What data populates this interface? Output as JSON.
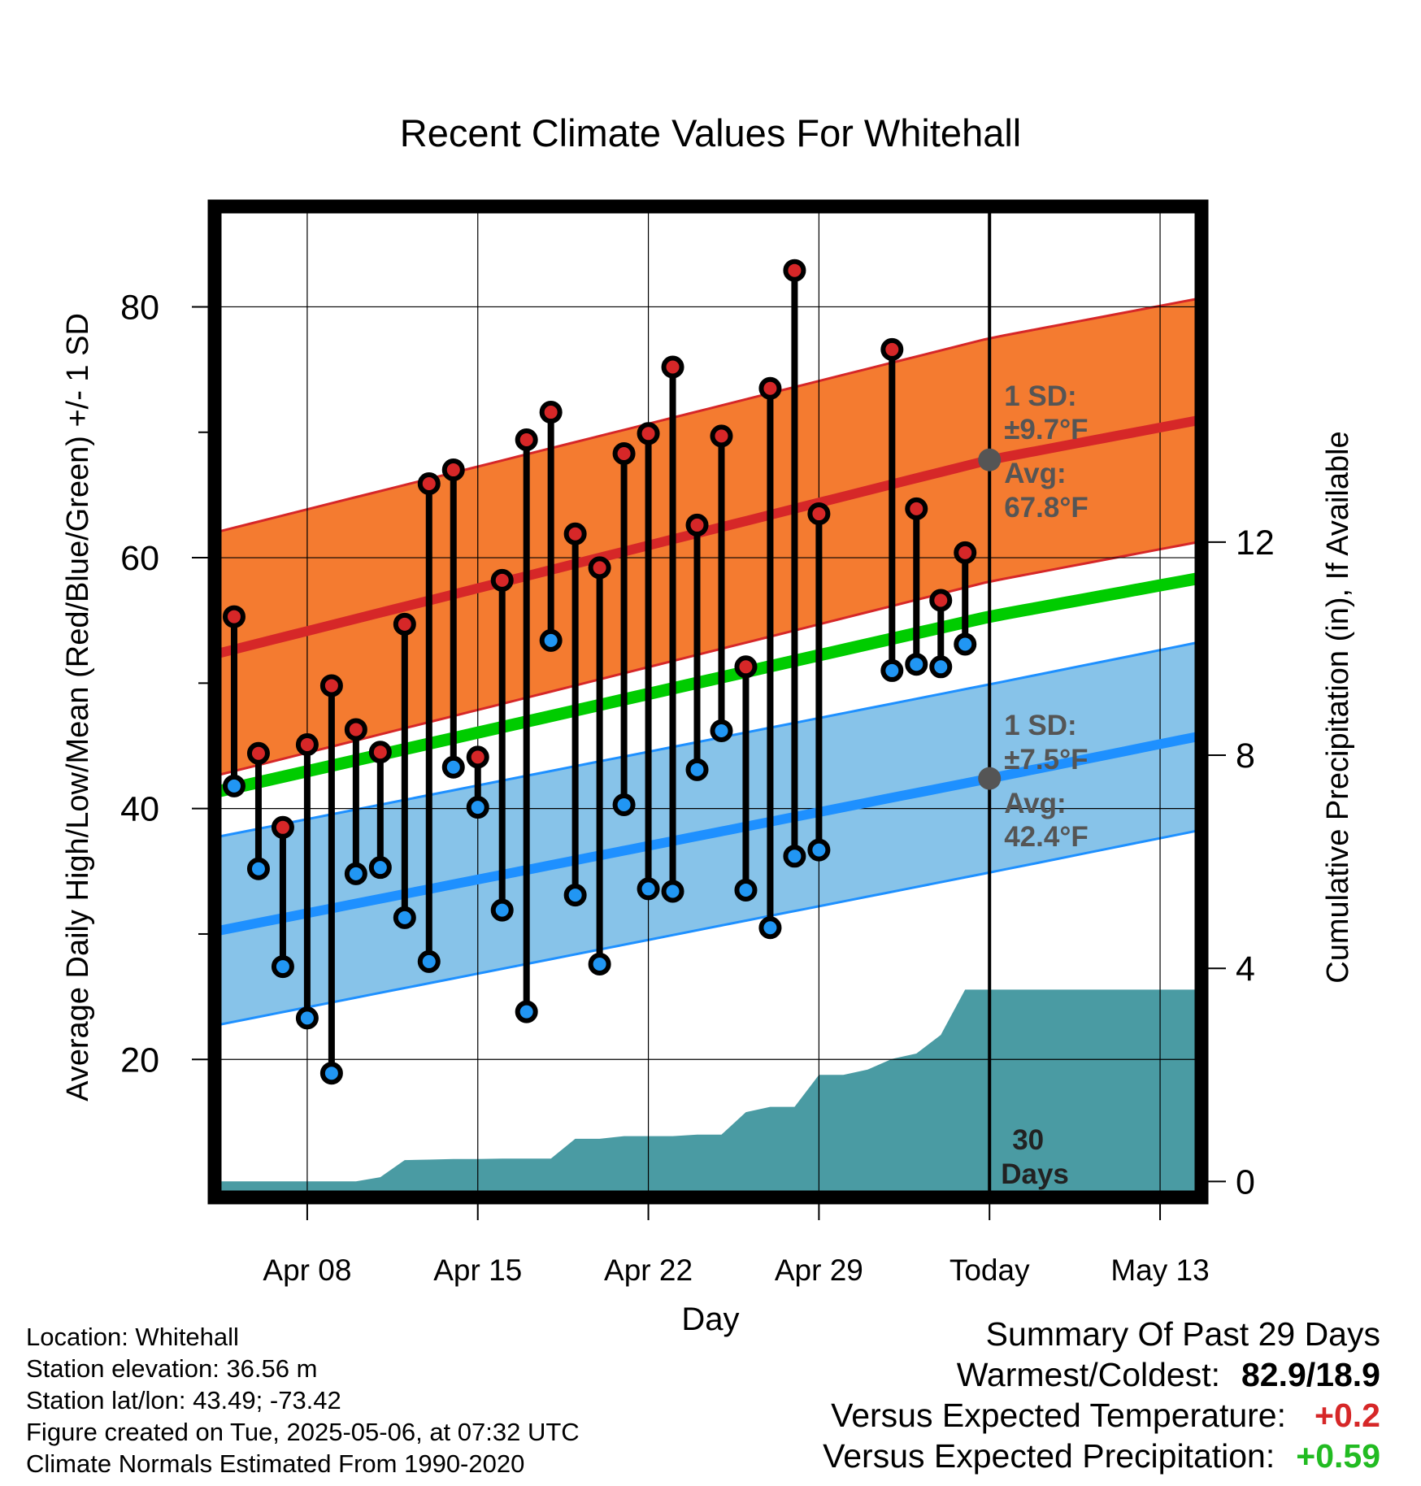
{
  "chart_data": {
    "type": "line",
    "title": "Recent Climate Values For Whitehall",
    "xlabel": "Day",
    "ylabel_left": "Average Daily High/Low/Mean (Red/Blue/Green) +/- 1 SD",
    "ylabel_right": "Cumulative Precipitation (in), If Available",
    "x_tick_labels": [
      "Apr 08",
      "Apr 15",
      "Apr 22",
      "Apr 29",
      "Today",
      "May 13"
    ],
    "x_tick_days": [
      8,
      15,
      22,
      29,
      36,
      43
    ],
    "xlim": [
      4.2,
      44.7
    ],
    "today_day": 36,
    "ylim_left": [
      9,
      88
    ],
    "y_ticks_left": [
      20,
      40,
      60,
      80
    ],
    "y_minor_ticks_left": [
      30,
      50,
      70
    ],
    "ylim_right": [
      -0.3,
      18.3
    ],
    "y_ticks_right": [
      0,
      4,
      8,
      12
    ],
    "grid": true,
    "observed": {
      "days": [
        5,
        6,
        7,
        8,
        9,
        10,
        11,
        12,
        13,
        14,
        15,
        16,
        17,
        18,
        19,
        20,
        21,
        22,
        23,
        24,
        25,
        26,
        27,
        28,
        29,
        30,
        32,
        33,
        34,
        35
      ],
      "high": [
        55.3,
        44.4,
        38.5,
        45.1,
        49.8,
        46.3,
        44.5,
        54.7,
        65.9,
        67.0,
        44.1,
        58.2,
        69.4,
        71.6,
        61.9,
        59.2,
        68.3,
        69.9,
        75.2,
        62.6,
        69.7,
        51.3,
        73.5,
        82.9,
        63.5,
        null,
        76.6,
        63.9,
        56.6,
        60.4
      ],
      "low": [
        41.8,
        35.2,
        27.4,
        23.3,
        18.9,
        34.8,
        35.3,
        31.3,
        27.8,
        43.3,
        40.1,
        31.9,
        23.8,
        53.4,
        33.1,
        27.6,
        40.3,
        33.6,
        33.4,
        43.1,
        46.2,
        33.5,
        30.5,
        36.2,
        36.7,
        null,
        51.0,
        51.5,
        51.3,
        53.1
      ]
    },
    "normal_high": {
      "days": [
        4.2,
        36,
        44.7
      ],
      "avg": [
        52.3,
        67.8,
        71.0
      ],
      "sd": 9.7
    },
    "normal_low": {
      "days": [
        4.2,
        36,
        44.7
      ],
      "avg": [
        30.2,
        42.4,
        45.8
      ],
      "sd": 7.5
    },
    "normal_mean": {
      "days": [
        4.2,
        36,
        44.7
      ],
      "avg": [
        41.3,
        55.3,
        58.4
      ]
    },
    "precip_cumulative": {
      "days": [
        4.2,
        8,
        9,
        10,
        11,
        12,
        13,
        14,
        15,
        16,
        17,
        18,
        19,
        20,
        21,
        22,
        23,
        24,
        25,
        26,
        27,
        28,
        29,
        30,
        31,
        32,
        33,
        34,
        35,
        36,
        44.7
      ],
      "values": [
        0,
        0,
        0,
        0,
        0.08,
        0.4,
        0.41,
        0.42,
        0.42,
        0.43,
        0.43,
        0.43,
        0.8,
        0.8,
        0.85,
        0.85,
        0.85,
        0.88,
        0.88,
        1.3,
        1.4,
        1.4,
        2.0,
        2.0,
        2.1,
        2.3,
        2.4,
        2.75,
        3.6,
        3.6,
        3.6
      ]
    },
    "annotations": {
      "high_sd_label": "1 SD:",
      "high_sd_value": "±9.7°F",
      "high_avg_label": "Avg:",
      "high_avg_value": "67.8°F",
      "low_sd_label": "1 SD:",
      "low_sd_value": "±7.5°F",
      "low_avg_label": "Avg:",
      "low_avg_value": "42.4°F",
      "window_line1": "30",
      "window_line2": "Days"
    },
    "colors": {
      "high_band": "#f47b30",
      "high_line": "#d62728",
      "low_band": "#87c3e9",
      "low_line": "#1e90ff",
      "mean_line": "#00cc00",
      "precip_fill": "#4a9ba3",
      "high_dot": "#d62728",
      "low_dot": "#2196f3",
      "annotation": "#555555"
    }
  },
  "info": {
    "location": "Location: Whitehall",
    "elevation": "Station elevation: 36.56 m",
    "latlon": "Station lat/lon: 43.49; -73.42",
    "created": "Figure created on Tue, 2025-05-06, at 07:32 UTC",
    "normals": "Climate Normals Estimated From 1990-2020"
  },
  "summary": {
    "title": "Summary Of Past 29 Days",
    "warmest_label": "Warmest/Coldest:",
    "warmest_value": "82.9/18.9",
    "temp_label": "Versus Expected Temperature:",
    "temp_value": "+0.2",
    "precip_label": "Versus Expected Precipitation:",
    "precip_value": "+0.59"
  }
}
